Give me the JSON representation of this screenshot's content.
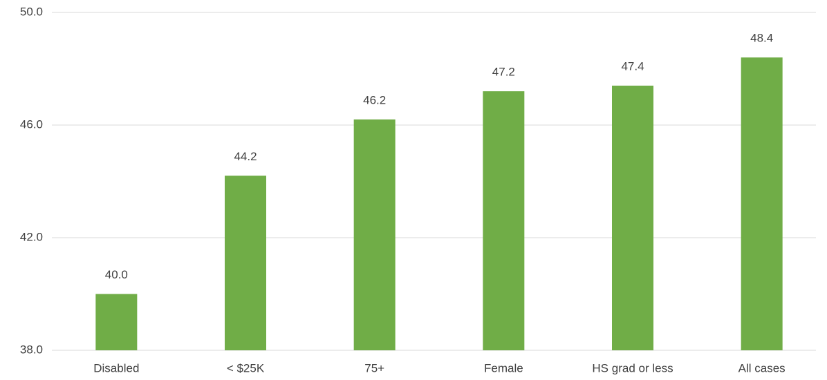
{
  "chart_data": {
    "type": "bar",
    "categories": [
      "Disabled",
      "< $25K",
      "75+",
      "Female",
      "HS grad or less",
      "All cases"
    ],
    "values": [
      40.0,
      44.2,
      46.2,
      47.2,
      47.4,
      48.4
    ],
    "value_labels": [
      "40.0",
      "44.2",
      "46.2",
      "47.2",
      "47.4",
      "48.4"
    ],
    "color": "#70ad47",
    "ylim": [
      38,
      50
    ],
    "yticks": [
      {
        "value": 38,
        "label": "38.0"
      },
      {
        "value": 42,
        "label": "42.0"
      },
      {
        "value": 46,
        "label": "46.0"
      },
      {
        "value": 50,
        "label": "50.0"
      }
    ],
    "grid": true
  }
}
